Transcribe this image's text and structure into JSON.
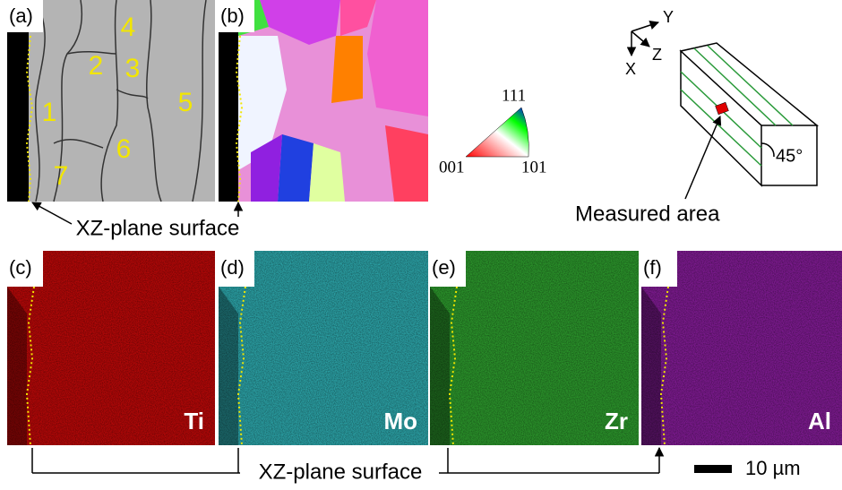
{
  "top_panels": {
    "a": {
      "label": "(a)",
      "grains": [
        "1",
        "2",
        "3",
        "4",
        "5",
        "6",
        "7"
      ]
    },
    "b": {
      "label": "(b)"
    }
  },
  "ipf_key": {
    "top": "111",
    "left": "001",
    "right": "101"
  },
  "schematic": {
    "axes": {
      "y": "Y",
      "z": "Z",
      "x": "X"
    },
    "angle": "45°",
    "annotation": "Measured area"
  },
  "top_caption": "XZ-plane surface",
  "maps": [
    {
      "label": "(c)",
      "element": "Ti"
    },
    {
      "label": "(d)",
      "element": "Mo"
    },
    {
      "label": "(e)",
      "element": "Zr"
    },
    {
      "label": "(f)",
      "element": "Al"
    }
  ],
  "bottom_caption": "XZ-plane surface",
  "scale_bar": "10 µm"
}
